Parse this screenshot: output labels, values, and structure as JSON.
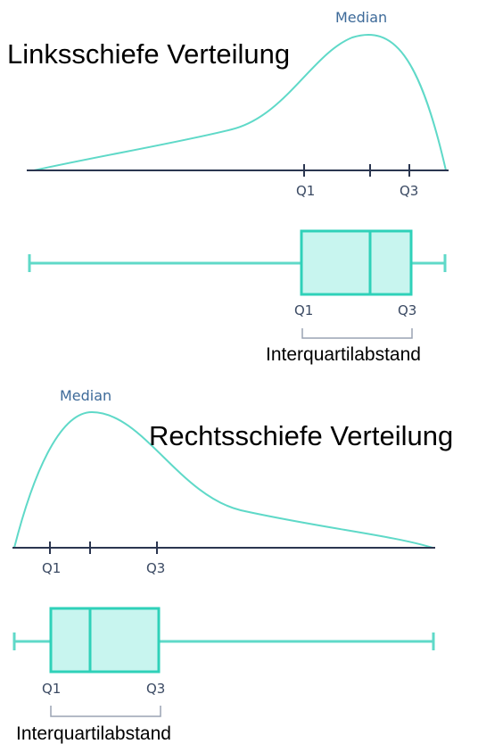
{
  "colors": {
    "curve": "#5fd9c8",
    "box_fill": "#c8f5ef",
    "box_stroke": "#2fd1b9",
    "axis": "#2b3650",
    "bracket": "#9aa3b3",
    "median_label": "#3d6a99"
  },
  "left_skew": {
    "title": "Linksschiefe Verteilung",
    "median_label": "Median",
    "q1_label": "Q1",
    "q3_label": "Q3",
    "box_q1_label": "Q1",
    "box_q3_label": "Q3",
    "iqr_label": "Interquartilabstand"
  },
  "right_skew": {
    "title": "Rechtsschiefe Verteilung",
    "median_label": "Median",
    "q1_label": "Q1",
    "q3_label": "Q3",
    "box_q1_label": "Q1",
    "box_q3_label": "Q3",
    "iqr_label": "Interquartilabstand"
  }
}
